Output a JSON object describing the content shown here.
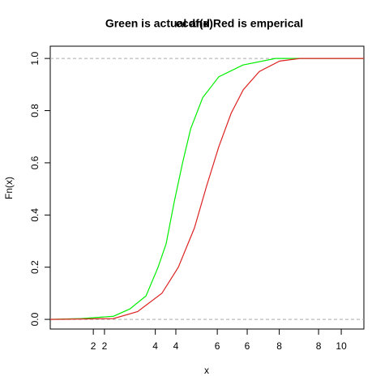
{
  "chart_data": {
    "type": "line",
    "titles": [
      "ecdf(x)",
      "Green is actual and Red is emperical"
    ],
    "xlabel": "x",
    "ylabel": "Fn(x)",
    "xlim": [
      0.61,
      10.73
    ],
    "xticks": [
      2,
      4,
      6,
      8,
      10
    ],
    "x2lim": [
      0.48,
      9.27
    ],
    "x2ticks": [
      2,
      4,
      6,
      8
    ],
    "ylim": [
      -0.037,
      1.047
    ],
    "yticks": [
      {
        "value": 0,
        "label": "0.0"
      },
      0.2,
      0.4,
      0.6,
      0.8,
      {
        "value": 1,
        "label": "1.0"
      }
    ],
    "hlines": [
      0,
      1
    ],
    "hline_color": "#aaaaaa",
    "series": [
      {
        "color": "#00ee00",
        "axis": "x",
        "x": [
          0.61,
          1.61,
          2.65,
          3.18,
          3.7,
          4.09,
          4.35,
          4.61,
          4.88,
          5.14,
          5.53,
          6.05,
          6.83,
          7.88,
          10.73
        ],
        "values": [
          0,
          0.003,
          0.012,
          0.04,
          0.09,
          0.2,
          0.29,
          0.45,
          0.6,
          0.73,
          0.85,
          0.93,
          0.975,
          1,
          1
        ]
      },
      {
        "color": "#dd2222",
        "axis": "x2",
        "x": [
          0.48,
          2.25,
          2.93,
          3.61,
          4.07,
          4.52,
          4.86,
          5.2,
          5.55,
          5.89,
          6.34,
          6.91,
          7.48,
          9.27
        ],
        "values": [
          0,
          0.003,
          0.03,
          0.1,
          0.2,
          0.35,
          0.51,
          0.66,
          0.79,
          0.88,
          0.95,
          0.99,
          1,
          1
        ]
      }
    ]
  }
}
